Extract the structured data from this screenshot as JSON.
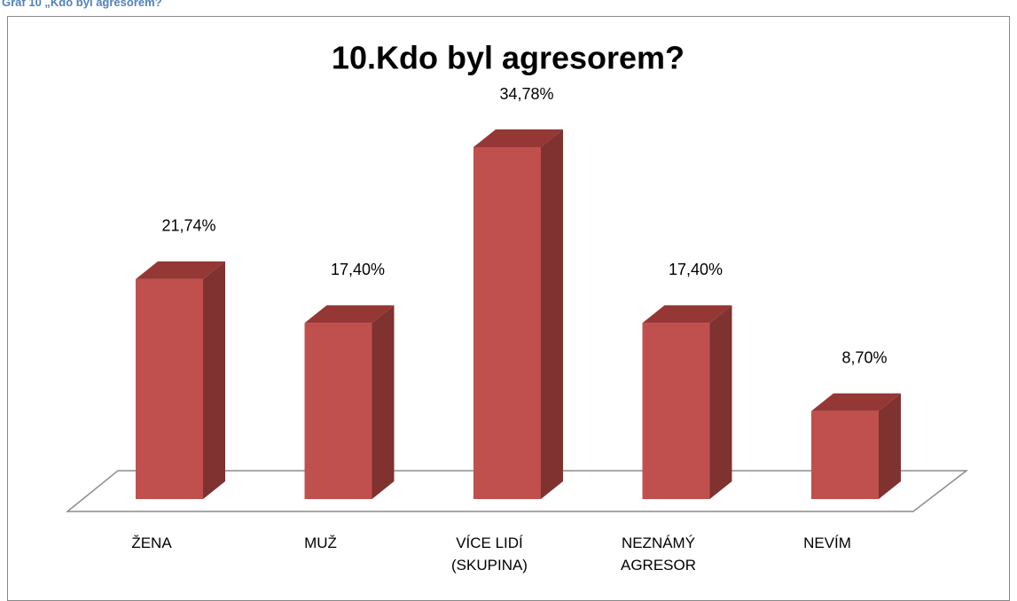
{
  "caption": "Graf 10 „Kdo byl agresorem?",
  "chart_data": {
    "type": "bar3d",
    "title": "10.Kdo byl agresorem?",
    "categories": [
      "ŽENA",
      "MUŽ",
      "VÍCE LIDÍ (SKUPINA)",
      "NEZNÁMÝ AGRESOR",
      "NEVÍM"
    ],
    "values": [
      21.74,
      17.4,
      34.78,
      17.4,
      8.7
    ],
    "value_labels": [
      "21,74%",
      "17,40%",
      "34,78%",
      "17,40%",
      "8,70%"
    ],
    "color": "#c0504d"
  }
}
